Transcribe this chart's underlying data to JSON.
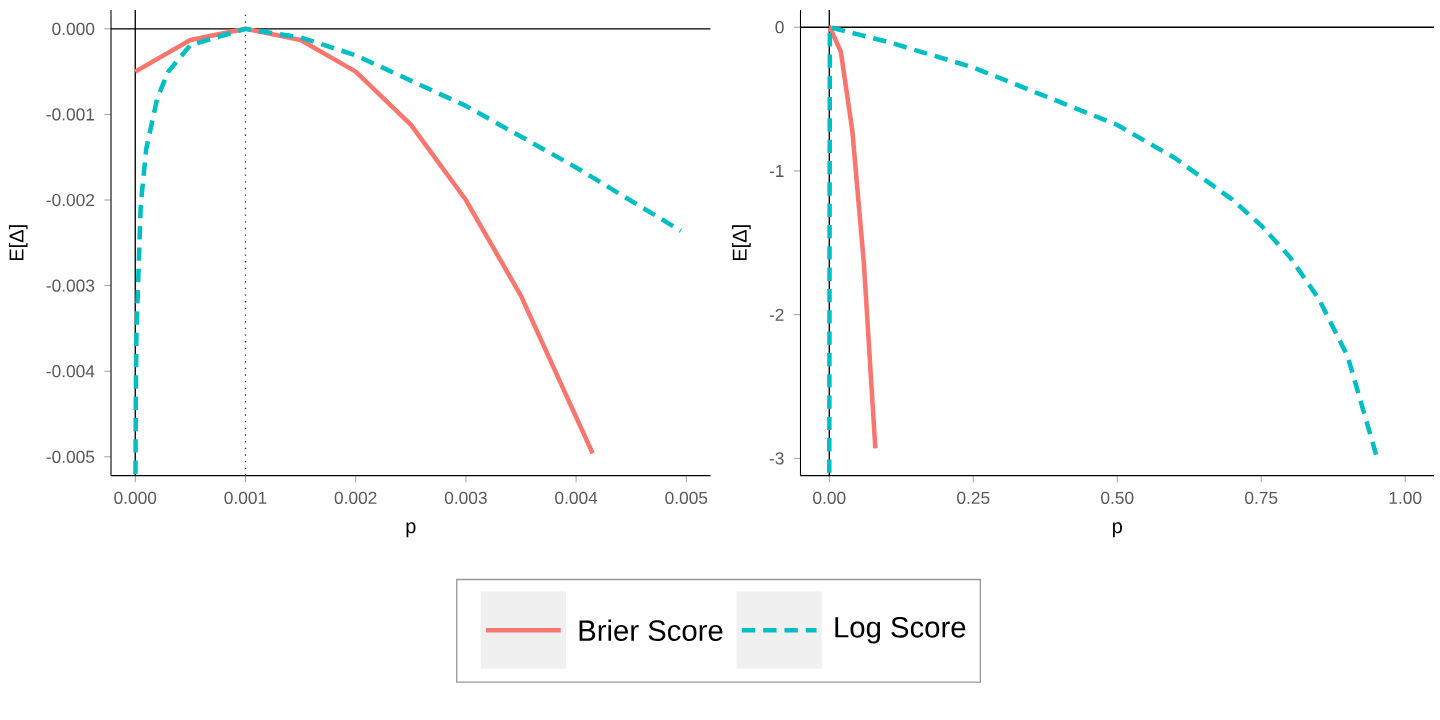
{
  "chart_data": [
    {
      "type": "line",
      "xlabel": "p",
      "ylabel": "E[Δ]",
      "xlim": [
        -0.00022,
        0.00522
      ],
      "ylim": [
        -0.00522,
        0.00022
      ],
      "xticks": [
        {
          "value": 0,
          "label": "0.000"
        },
        {
          "value": 0.001,
          "label": "0.001"
        },
        {
          "value": 0.002,
          "label": "0.002"
        },
        {
          "value": 0.003,
          "label": "0.003"
        },
        {
          "value": 0.004,
          "label": "0.004"
        },
        {
          "value": 0.005,
          "label": "0.005"
        }
      ],
      "yticks": [
        {
          "value": 0,
          "label": "0.000"
        },
        {
          "value": -0.001,
          "label": "-0.001"
        },
        {
          "value": -0.002,
          "label": "-0.002"
        },
        {
          "value": -0.003,
          "label": "-0.003"
        },
        {
          "value": -0.004,
          "label": "-0.004"
        },
        {
          "value": -0.005,
          "label": "-0.005"
        }
      ],
      "legend": "bottom",
      "ref_lines": [
        {
          "axis": "y",
          "value": 0,
          "color": "#000000",
          "line_style": "solid"
        },
        {
          "axis": "x",
          "value": 0,
          "color": "#000000",
          "line_style": "solid"
        },
        {
          "axis": "x",
          "value": 0.001,
          "color": "#333333",
          "line_style": "dotted"
        }
      ],
      "series": [
        {
          "name": "Brier Score",
          "color": "#f8766d",
          "line_style": "solid",
          "x": [
            0,
            0.0005,
            0.001,
            0.0015,
            0.002,
            0.0025,
            0.003,
            0.0035,
            0.00415
          ],
          "values": [
            -0.0005,
            -0.00013,
            0,
            -0.00013,
            -0.0005,
            -0.00112,
            -0.002,
            -0.00312,
            -0.00496
          ]
        },
        {
          "name": "Log Score",
          "color": "#00bfc4",
          "line_style": "dashed",
          "x": [
            2e-06,
            5e-06,
            1e-05,
            5e-05,
            0.0001,
            0.0002,
            0.0003,
            0.0005,
            0.001,
            0.0015,
            0.002,
            0.003,
            0.004,
            0.00495
          ],
          "values": [
            -0.0052,
            -0.0043,
            -0.0036,
            -0.00205,
            -0.0014,
            -0.00081,
            -0.0005,
            -0.00019,
            0,
            -0.0001,
            -0.00031,
            -0.0009,
            -0.00162,
            -0.00236
          ]
        }
      ]
    },
    {
      "type": "line",
      "xlabel": "p",
      "ylabel": "E[Δ]",
      "xlim": [
        -0.05,
        1.05
      ],
      "ylim": [
        -3.12,
        0.12
      ],
      "xticks": [
        {
          "value": 0,
          "label": "0.00"
        },
        {
          "value": 0.25,
          "label": "0.25"
        },
        {
          "value": 0.5,
          "label": "0.50"
        },
        {
          "value": 0.75,
          "label": "0.75"
        },
        {
          "value": 1,
          "label": "1.00"
        }
      ],
      "yticks": [
        0,
        -1,
        -2,
        -3
      ],
      "ref_lines": [
        {
          "axis": "y",
          "value": 0,
          "color": "#000000",
          "line_style": "solid"
        },
        {
          "axis": "x",
          "value": 0,
          "color": "#000000",
          "line_style": "solid"
        }
      ],
      "series": [
        {
          "color": "#f8766d",
          "line_style": "solid",
          "x": [
            0,
            0.001,
            0.02,
            0.04,
            0.06,
            0.08
          ],
          "values": [
            0,
            0,
            -0.17,
            -0.72,
            -1.64,
            -2.93
          ]
        },
        {
          "color": "#00bfc4",
          "line_style": "dashed",
          "x": [
            0,
            0.001,
            0.05,
            0.1,
            0.25,
            0.5,
            0.6,
            0.7,
            0.75,
            0.8,
            0.85,
            0.9,
            0.95
          ],
          "values": [
            -3.1,
            0,
            -0.05,
            -0.1,
            -0.28,
            -0.68,
            -0.91,
            -1.2,
            -1.38,
            -1.6,
            -1.89,
            -2.29,
            -2.98
          ]
        }
      ]
    }
  ]
}
